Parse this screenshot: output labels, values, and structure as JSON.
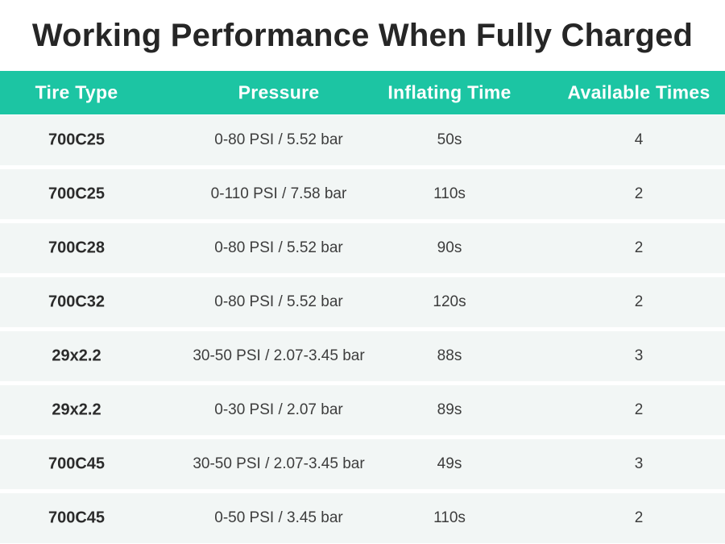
{
  "title": "Working Performance When Fully Charged",
  "chart_data": {
    "type": "table",
    "title": "Working Performance When Fully Charged",
    "columns": [
      "Tire Type",
      "Pressure",
      "Inflating Time",
      "Available Times"
    ],
    "rows": [
      {
        "tire_type": "700C25",
        "pressure": "0-80 PSI / 5.52 bar",
        "inflating_time": "50s",
        "available_times": "4"
      },
      {
        "tire_type": "700C25",
        "pressure": "0-110 PSI / 7.58 bar",
        "inflating_time": "110s",
        "available_times": "2"
      },
      {
        "tire_type": "700C28",
        "pressure": "0-80 PSI / 5.52 bar",
        "inflating_time": "90s",
        "available_times": "2"
      },
      {
        "tire_type": "700C32",
        "pressure": "0-80 PSI / 5.52 bar",
        "inflating_time": "120s",
        "available_times": "2"
      },
      {
        "tire_type": "29x2.2",
        "pressure": "30-50 PSI / 2.07-3.45 bar",
        "inflating_time": "88s",
        "available_times": "3"
      },
      {
        "tire_type": "29x2.2",
        "pressure": "0-30 PSI / 2.07 bar",
        "inflating_time": "89s",
        "available_times": "2"
      },
      {
        "tire_type": "700C45",
        "pressure": "30-50 PSI / 2.07-3.45 bar",
        "inflating_time": "49s",
        "available_times": "3"
      },
      {
        "tire_type": "700C45",
        "pressure": "0-50 PSI / 3.45 bar",
        "inflating_time": "110s",
        "available_times": "2"
      }
    ]
  },
  "colors": {
    "accent_teal": "#1cc5a3",
    "row_background": "#f2f6f5",
    "title_text": "#262626",
    "data_text": "#3d3d3d",
    "header_text": "#ffffff"
  }
}
